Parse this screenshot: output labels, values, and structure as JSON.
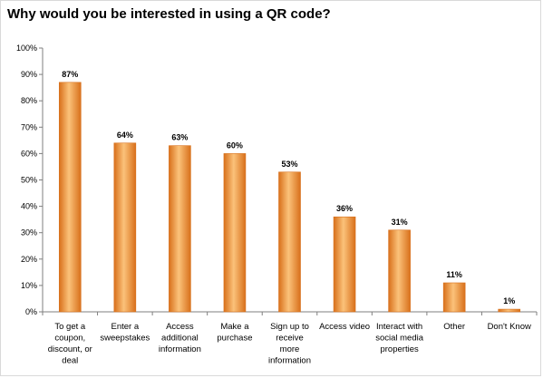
{
  "title": "Why would you be interested in using a QR code?",
  "colors": {
    "bar_edge": "#d8701b",
    "bar_mid": "#f7a84a",
    "bar_light": "#fbc27a",
    "axis": "#7f7f7f"
  },
  "chart_data": {
    "type": "bar",
    "title": "Why would you be interested in using a QR code?",
    "xlabel": "",
    "ylabel": "",
    "ylim": [
      0,
      100
    ],
    "y_ticks": [
      "0%",
      "10%",
      "20%",
      "30%",
      "40%",
      "50%",
      "60%",
      "70%",
      "80%",
      "90%",
      "100%"
    ],
    "grid": false,
    "legend": "none",
    "categories": [
      [
        "To get a",
        "coupon,",
        "discount, or",
        "deal"
      ],
      [
        "Enter a",
        "sweepstakes"
      ],
      [
        "Access",
        "additional",
        "information"
      ],
      [
        "Make a",
        "purchase"
      ],
      [
        "Sign up to",
        "receive",
        "more",
        "information"
      ],
      [
        "Access video"
      ],
      [
        "Interact with",
        "social media",
        "properties"
      ],
      [
        "Other"
      ],
      [
        "Don't Know"
      ]
    ],
    "values": [
      87,
      64,
      63,
      60,
      53,
      36,
      31,
      11,
      1
    ],
    "data_labels": [
      "87%",
      "64%",
      "63%",
      "60%",
      "53%",
      "36%",
      "31%",
      "11%",
      "1%"
    ]
  }
}
